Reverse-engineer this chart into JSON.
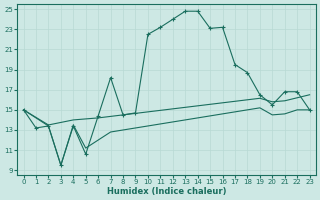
{
  "xlabel": "Humidex (Indice chaleur)",
  "bg_color": "#cde8e4",
  "line_color": "#1a6e5e",
  "grid_color": "#b8d9d4",
  "xlim": [
    -0.5,
    23.5
  ],
  "ylim": [
    8.5,
    25.5
  ],
  "xticks": [
    0,
    1,
    2,
    3,
    4,
    5,
    6,
    7,
    8,
    9,
    10,
    11,
    12,
    13,
    14,
    15,
    16,
    17,
    18,
    19,
    20,
    21,
    22,
    23
  ],
  "yticks": [
    9,
    11,
    13,
    15,
    17,
    19,
    21,
    23,
    25
  ],
  "line1_x": [
    0,
    1,
    2,
    3,
    4,
    5,
    6,
    7,
    8,
    9,
    10,
    11,
    12,
    13,
    14,
    15,
    16,
    17,
    18,
    19,
    20,
    21,
    22,
    23
  ],
  "line1_y": [
    15.0,
    13.2,
    13.4,
    9.5,
    13.4,
    10.6,
    14.4,
    18.2,
    14.5,
    14.7,
    22.5,
    23.2,
    24.0,
    24.8,
    24.8,
    23.1,
    23.2,
    19.5,
    18.7,
    16.5,
    15.5,
    16.8,
    16.8,
    15.0
  ],
  "line2_x": [
    0,
    2,
    4,
    5,
    6,
    7,
    8,
    9,
    10,
    11,
    12,
    13,
    14,
    15,
    16,
    17,
    18,
    19,
    20,
    21,
    22,
    23
  ],
  "line2_y": [
    15.0,
    13.5,
    14.0,
    14.1,
    14.2,
    14.35,
    14.5,
    14.65,
    14.8,
    14.95,
    15.1,
    15.25,
    15.4,
    15.55,
    15.7,
    15.85,
    16.0,
    16.15,
    15.8,
    15.9,
    16.2,
    16.5
  ],
  "line3_x": [
    0,
    2,
    3,
    4,
    5,
    6,
    7,
    8,
    9,
    10,
    11,
    12,
    13,
    14,
    15,
    16,
    17,
    18,
    19,
    20,
    21,
    22,
    23
  ],
  "line3_y": [
    15.0,
    13.4,
    9.5,
    13.5,
    11.2,
    12.0,
    12.8,
    13.0,
    13.2,
    13.4,
    13.6,
    13.8,
    14.0,
    14.2,
    14.4,
    14.6,
    14.8,
    15.0,
    15.2,
    14.5,
    14.6,
    15.0,
    15.0
  ]
}
